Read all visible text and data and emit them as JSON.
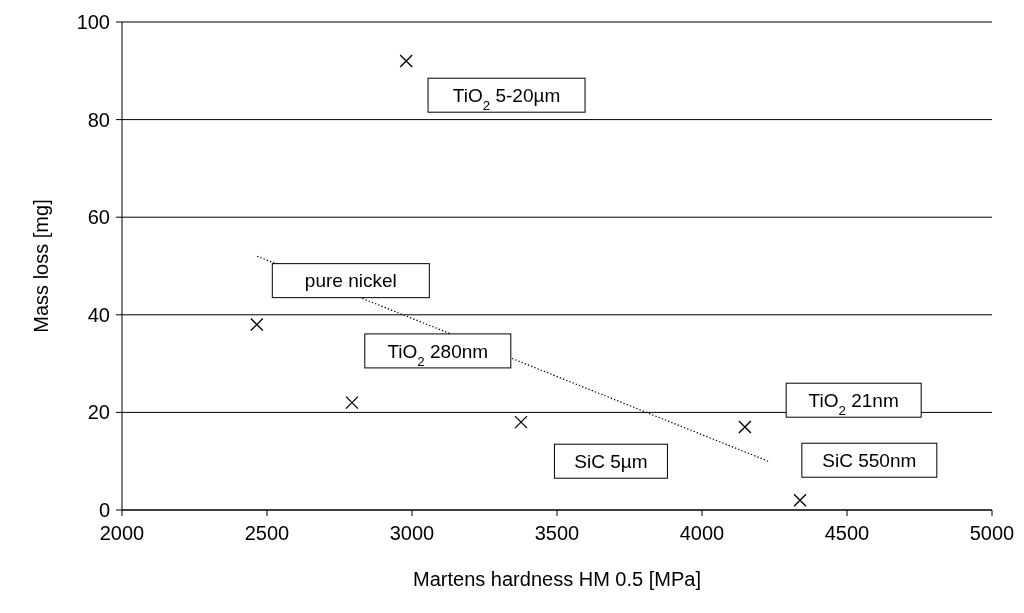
{
  "chart_data": {
    "type": "scatter",
    "xlabel": "Martens hardness HM 0.5 [MPa]",
    "ylabel": "Mass loss [mg]",
    "xlim": [
      2000,
      5000
    ],
    "xticks": [
      2000,
      2500,
      3000,
      3500,
      4000,
      4500,
      5000
    ],
    "ylim": [
      0,
      100
    ],
    "yticks": [
      0,
      20,
      40,
      60,
      80,
      100
    ],
    "grid": "y",
    "marker": "cross",
    "series": [
      {
        "color": "#000000",
        "x": [
          2465,
          2793,
          2980,
          3376,
          4148,
          4338
        ],
        "values": [
          38,
          22,
          92,
          18,
          17,
          2
        ]
      },
      {
        "type": "line",
        "color": "#000000",
        "line_style": "dotted",
        "marker": "none",
        "x": [
          2466,
          4228
        ],
        "values": [
          52,
          10
        ]
      }
    ],
    "annotations": [
      "TiO$_{2}$ 5-20µm",
      "pure nickel",
      "TiO$_{2}$ 280nm",
      "TiO$_{2}$ 21nm",
      "SiC 550nm",
      "SiC 5µm"
    ]
  }
}
